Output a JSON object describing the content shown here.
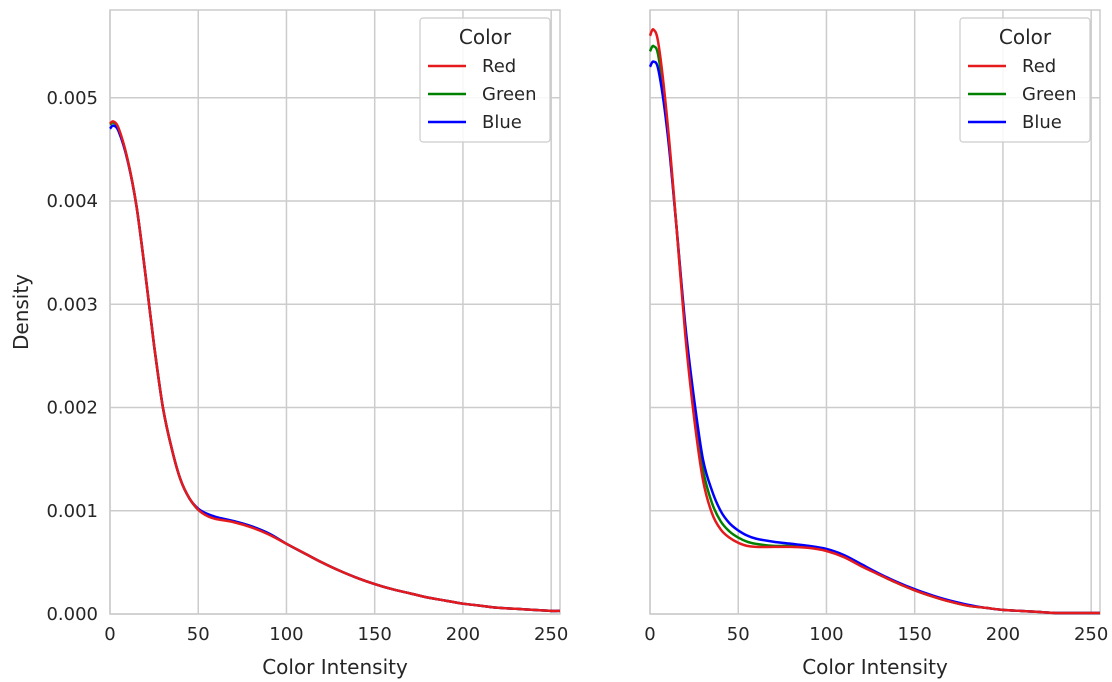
{
  "chart_data": [
    {
      "type": "line",
      "xlabel": "Color Intensity",
      "ylabel": "Density",
      "xlim": [
        0,
        255
      ],
      "ylim": [
        0,
        0.00585
      ],
      "xticks": [
        0,
        50,
        100,
        150,
        200,
        250
      ],
      "yticks": [
        0.0,
        0.001,
        0.002,
        0.003,
        0.004,
        0.005
      ],
      "ytick_labels": [
        "0.000",
        "0.001",
        "0.002",
        "0.003",
        "0.004",
        "0.005"
      ],
      "grid": true,
      "legend": {
        "title": "Color",
        "placement": "top-right"
      },
      "x": [
        0,
        2,
        5,
        10,
        15,
        20,
        25,
        30,
        35,
        40,
        45,
        50,
        55,
        60,
        70,
        80,
        90,
        100,
        110,
        120,
        130,
        140,
        150,
        160,
        170,
        180,
        190,
        200,
        210,
        220,
        230,
        240,
        250,
        255
      ],
      "series": [
        {
          "name": "Red",
          "color": "#e41a1c",
          "values": [
            0.00475,
            0.00477,
            0.0047,
            0.0044,
            0.00395,
            0.0033,
            0.0026,
            0.002,
            0.0016,
            0.0013,
            0.00112,
            0.00101,
            0.00095,
            0.00092,
            0.00089,
            0.00084,
            0.00077,
            0.00068,
            0.00059,
            0.0005,
            0.00042,
            0.00035,
            0.00029,
            0.00024,
            0.0002,
            0.00016,
            0.00013,
            0.0001,
            8e-05,
            6e-05,
            5e-05,
            4e-05,
            3e-05,
            3e-05
          ]
        },
        {
          "name": "Green",
          "color": "#008000",
          "values": [
            0.00474,
            0.00476,
            0.00469,
            0.0044,
            0.00395,
            0.0033,
            0.0026,
            0.002,
            0.0016,
            0.0013,
            0.00112,
            0.00101,
            0.00096,
            0.00093,
            0.0009,
            0.00085,
            0.00078,
            0.00068,
            0.00059,
            0.0005,
            0.00042,
            0.00035,
            0.00029,
            0.00024,
            0.0002,
            0.00016,
            0.00013,
            0.0001,
            8e-05,
            6e-05,
            5e-05,
            4e-05,
            3e-05,
            3e-05
          ]
        },
        {
          "name": "Blue",
          "color": "#0000ff",
          "values": [
            0.0047,
            0.00473,
            0.00467,
            0.00439,
            0.00395,
            0.0033,
            0.0026,
            0.002,
            0.0016,
            0.0013,
            0.00112,
            0.00102,
            0.00097,
            0.00094,
            0.0009,
            0.00085,
            0.00078,
            0.00068,
            0.00059,
            0.0005,
            0.00042,
            0.00035,
            0.00029,
            0.00024,
            0.0002,
            0.00016,
            0.00013,
            0.0001,
            8e-05,
            6e-05,
            5e-05,
            4e-05,
            3e-05,
            3e-05
          ]
        }
      ]
    },
    {
      "type": "line",
      "xlabel": "Color Intensity",
      "ylabel": "",
      "xlim": [
        0,
        255
      ],
      "ylim": [
        0,
        0.00585
      ],
      "xticks": [
        0,
        50,
        100,
        150,
        200,
        250
      ],
      "yticks": [
        0.0,
        0.001,
        0.002,
        0.003,
        0.004,
        0.005
      ],
      "ytick_labels": [],
      "grid": true,
      "legend": {
        "title": "Color",
        "placement": "top-right"
      },
      "x": [
        0,
        2,
        5,
        10,
        15,
        20,
        25,
        30,
        35,
        40,
        45,
        50,
        55,
        60,
        70,
        80,
        90,
        100,
        110,
        120,
        130,
        140,
        150,
        160,
        170,
        180,
        190,
        200,
        210,
        220,
        230,
        240,
        250,
        255
      ],
      "series": [
        {
          "name": "Red",
          "color": "#e41a1c",
          "values": [
            0.0056,
            0.00566,
            0.0055,
            0.00475,
            0.00375,
            0.0027,
            0.0019,
            0.0013,
            0.00098,
            0.00082,
            0.00074,
            0.00069,
            0.00066,
            0.00065,
            0.00065,
            0.00065,
            0.00064,
            0.00061,
            0.00055,
            0.00046,
            0.00038,
            0.0003,
            0.00023,
            0.00017,
            0.00012,
            8e-05,
            6e-05,
            4e-05,
            3e-05,
            2e-05,
            1e-05,
            1e-05,
            1e-05,
            1e-05
          ]
        },
        {
          "name": "Green",
          "color": "#008000",
          "values": [
            0.00545,
            0.0055,
            0.00538,
            0.0047,
            0.00375,
            0.00275,
            0.00198,
            0.0014,
            0.00108,
            0.0009,
            0.0008,
            0.00074,
            0.0007,
            0.00068,
            0.00066,
            0.00066,
            0.00065,
            0.00062,
            0.00056,
            0.00047,
            0.00038,
            0.0003,
            0.00023,
            0.00017,
            0.00012,
            8e-05,
            6e-05,
            4e-05,
            3e-05,
            2e-05,
            1e-05,
            1e-05,
            1e-05,
            1e-05
          ]
        },
        {
          "name": "Blue",
          "color": "#0000ff",
          "values": [
            0.0053,
            0.00535,
            0.00525,
            0.00465,
            0.00375,
            0.0028,
            0.00208,
            0.0015,
            0.0012,
            0.001,
            0.00088,
            0.00081,
            0.00076,
            0.00073,
            0.0007,
            0.00068,
            0.00066,
            0.00063,
            0.00057,
            0.00048,
            0.00039,
            0.00031,
            0.00024,
            0.00018,
            0.00013,
            9e-05,
            6e-05,
            4e-05,
            3e-05,
            2e-05,
            1e-05,
            1e-05,
            1e-05,
            1e-05
          ]
        }
      ]
    }
  ]
}
